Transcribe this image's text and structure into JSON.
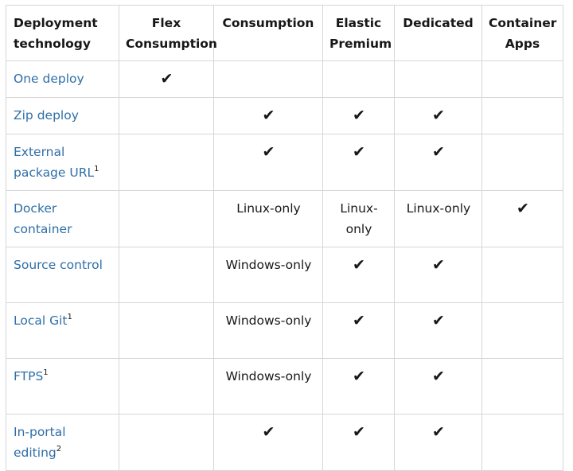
{
  "headers": [
    "Deployment technology",
    "Flex Consumption",
    "Consumption",
    "Elastic Premium",
    "Dedicated",
    "Container Apps"
  ],
  "check_symbol": "✔",
  "rows": [
    {
      "name": "One deploy",
      "sup": "",
      "cells": [
        "✔",
        "",
        "",
        "",
        ""
      ]
    },
    {
      "name": "Zip deploy",
      "sup": "",
      "cells": [
        "",
        "✔",
        "✔",
        "✔",
        ""
      ]
    },
    {
      "name": "External package URL",
      "sup": "1",
      "cells": [
        "",
        "✔",
        "✔",
        "✔",
        ""
      ]
    },
    {
      "name": "Docker container",
      "sup": "",
      "cells": [
        "",
        "Linux-only",
        "Linux-only",
        "Linux-only",
        "✔"
      ]
    },
    {
      "name": "Source control",
      "sup": "",
      "cells": [
        "",
        "Windows-only",
        "✔",
        "✔",
        ""
      ]
    },
    {
      "name": "Local Git",
      "sup": "1",
      "cells": [
        "",
        "Windows-only",
        "✔",
        "✔",
        ""
      ]
    },
    {
      "name": "FTPS",
      "sup": "1",
      "cells": [
        "",
        "Windows-only",
        "✔",
        "✔",
        ""
      ]
    },
    {
      "name": "In-portal editing",
      "sup": "2",
      "cells": [
        "",
        "✔",
        "✔",
        "✔",
        ""
      ]
    }
  ],
  "colors": {
    "link": "#2f6ea8",
    "text": "#171717",
    "border": "#d6d6d6"
  }
}
